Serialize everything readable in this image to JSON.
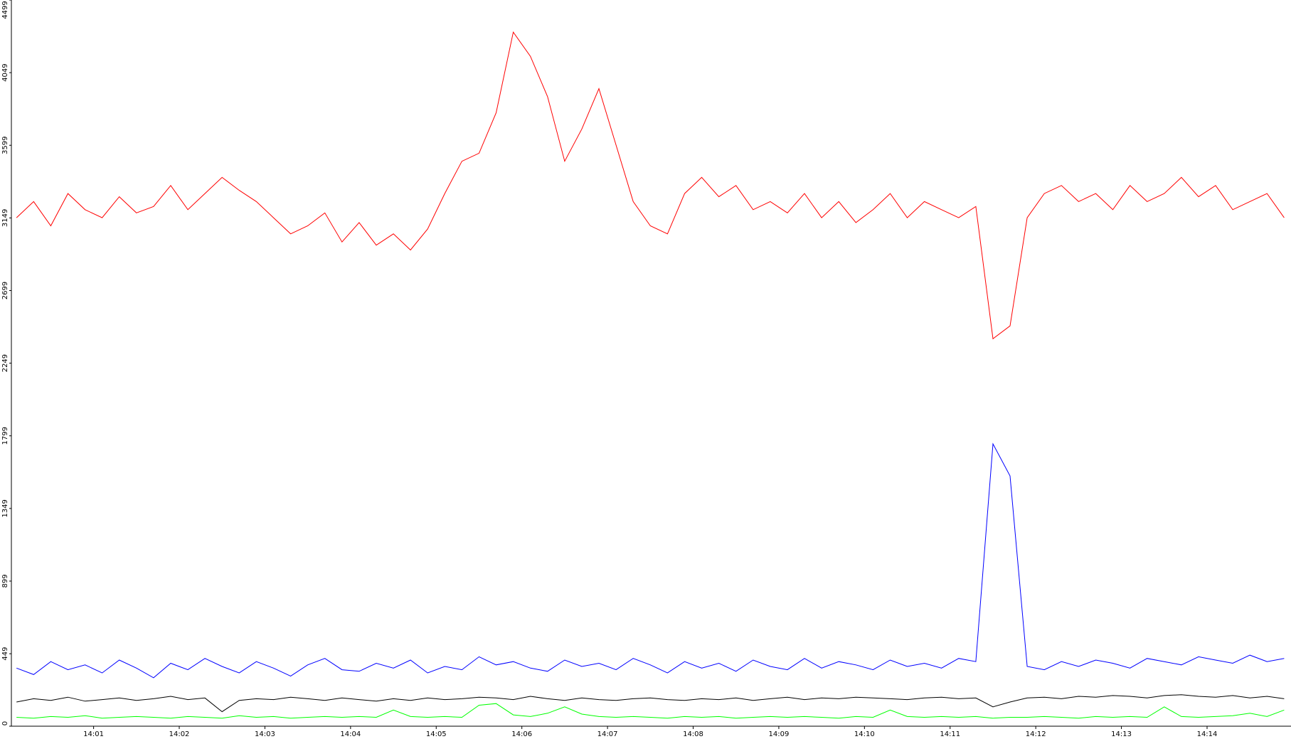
{
  "chart_data": {
    "type": "line",
    "x": [
      0.1,
      0.3,
      0.5,
      0.7,
      0.9,
      1.1,
      1.3,
      1.5,
      1.7,
      1.9,
      2.1,
      2.3,
      2.5,
      2.7,
      2.9,
      3.1,
      3.3,
      3.5,
      3.7,
      3.9,
      4.1,
      4.3,
      4.5,
      4.7,
      4.9,
      5.1,
      5.3,
      5.5,
      5.7,
      5.9,
      6.1,
      6.3,
      6.5,
      6.7,
      6.9,
      7.1,
      7.3,
      7.5,
      7.7,
      7.9,
      8.1,
      8.3,
      8.5,
      8.7,
      8.9,
      9.1,
      9.3,
      9.5,
      9.7,
      9.9,
      10.1,
      10.3,
      10.5,
      10.7,
      10.9,
      11.1,
      11.3,
      11.5,
      11.7,
      11.9,
      12.1,
      12.3,
      12.5,
      12.7,
      12.9,
      13.1,
      13.3,
      13.5,
      13.7,
      13.9,
      14.1,
      14.3,
      14.5,
      14.7,
      14.9
    ],
    "series": [
      {
        "color": "#ff0000",
        "values": [
          3150,
          3250,
          3100,
          3300,
          3200,
          3150,
          3280,
          3180,
          3220,
          3350,
          3200,
          3300,
          3400,
          3320,
          3250,
          3150,
          3050,
          3100,
          3180,
          3000,
          3120,
          2980,
          3050,
          2950,
          3080,
          3300,
          3500,
          3550,
          3800,
          4300,
          4150,
          3900,
          3500,
          3700,
          3950,
          3600,
          3250,
          3100,
          3050,
          3300,
          3400,
          3280,
          3350,
          3200,
          3250,
          3180,
          3300,
          3150,
          3250,
          3120,
          3200,
          3300,
          3150,
          3250,
          3200,
          3150,
          3220,
          2400,
          2480,
          3150,
          3300,
          3350,
          3250,
          3300,
          3200,
          3350,
          3250,
          3300,
          3400,
          3280,
          3350,
          3200,
          3250,
          3300,
          3150
        ]
      },
      {
        "color": "#0000ff",
        "values": [
          360,
          320,
          400,
          350,
          380,
          330,
          410,
          360,
          300,
          390,
          350,
          420,
          370,
          330,
          400,
          360,
          310,
          380,
          420,
          350,
          340,
          390,
          360,
          410,
          330,
          370,
          350,
          430,
          380,
          400,
          360,
          340,
          410,
          370,
          390,
          350,
          420,
          380,
          330,
          400,
          360,
          390,
          340,
          410,
          370,
          350,
          420,
          360,
          400,
          380,
          350,
          410,
          370,
          390,
          360,
          420,
          400,
          1749,
          1550,
          370,
          350,
          400,
          370,
          410,
          390,
          360,
          420,
          400,
          380,
          430,
          410,
          390,
          440,
          400,
          420
        ]
      },
      {
        "color": "#000000",
        "values": [
          150,
          170,
          160,
          180,
          155,
          165,
          175,
          160,
          170,
          185,
          165,
          175,
          90,
          160,
          170,
          165,
          180,
          170,
          160,
          175,
          165,
          155,
          170,
          160,
          175,
          165,
          170,
          180,
          175,
          165,
          185,
          170,
          160,
          175,
          165,
          160,
          170,
          175,
          165,
          160,
          170,
          165,
          175,
          160,
          170,
          180,
          165,
          175,
          170,
          180,
          175,
          170,
          165,
          175,
          180,
          170,
          175,
          120,
          150,
          175,
          180,
          170,
          185,
          180,
          190,
          185,
          175,
          190,
          195,
          185,
          180,
          190,
          175,
          185,
          170
        ]
      },
      {
        "color": "#00ff00",
        "values": [
          55,
          50,
          60,
          55,
          65,
          50,
          55,
          60,
          55,
          50,
          60,
          55,
          50,
          65,
          55,
          60,
          50,
          55,
          60,
          55,
          60,
          55,
          100,
          60,
          55,
          60,
          55,
          130,
          140,
          70,
          60,
          80,
          120,
          75,
          60,
          55,
          60,
          55,
          50,
          60,
          55,
          60,
          50,
          55,
          60,
          55,
          60,
          55,
          50,
          60,
          55,
          100,
          60,
          55,
          60,
          55,
          60,
          50,
          55,
          55,
          60,
          55,
          50,
          60,
          55,
          60,
          55,
          120,
          60,
          55,
          60,
          65,
          80,
          60,
          100
        ]
      }
    ],
    "xlim": [
      0.04,
      14.98
    ],
    "xticks": [
      {
        "value": 1,
        "label": "14:01"
      },
      {
        "value": 2,
        "label": "14:02"
      },
      {
        "value": 3,
        "label": "14:03"
      },
      {
        "value": 4,
        "label": "14:04"
      },
      {
        "value": 5,
        "label": "14:05"
      },
      {
        "value": 6,
        "label": "14:06"
      },
      {
        "value": 7,
        "label": "14:07"
      },
      {
        "value": 8,
        "label": "14:08"
      },
      {
        "value": 9,
        "label": "14:09"
      },
      {
        "value": 10,
        "label": "14:10"
      },
      {
        "value": 11,
        "label": "14:11"
      },
      {
        "value": 12,
        "label": "14:12"
      },
      {
        "value": 13,
        "label": "14:13"
      },
      {
        "value": 14,
        "label": "14:14"
      }
    ],
    "ylim": [
      0,
      4499
    ],
    "yticks": [
      0,
      449,
      899,
      1349,
      1799,
      2249,
      2699,
      3149,
      3599,
      4049,
      4499
    ]
  }
}
